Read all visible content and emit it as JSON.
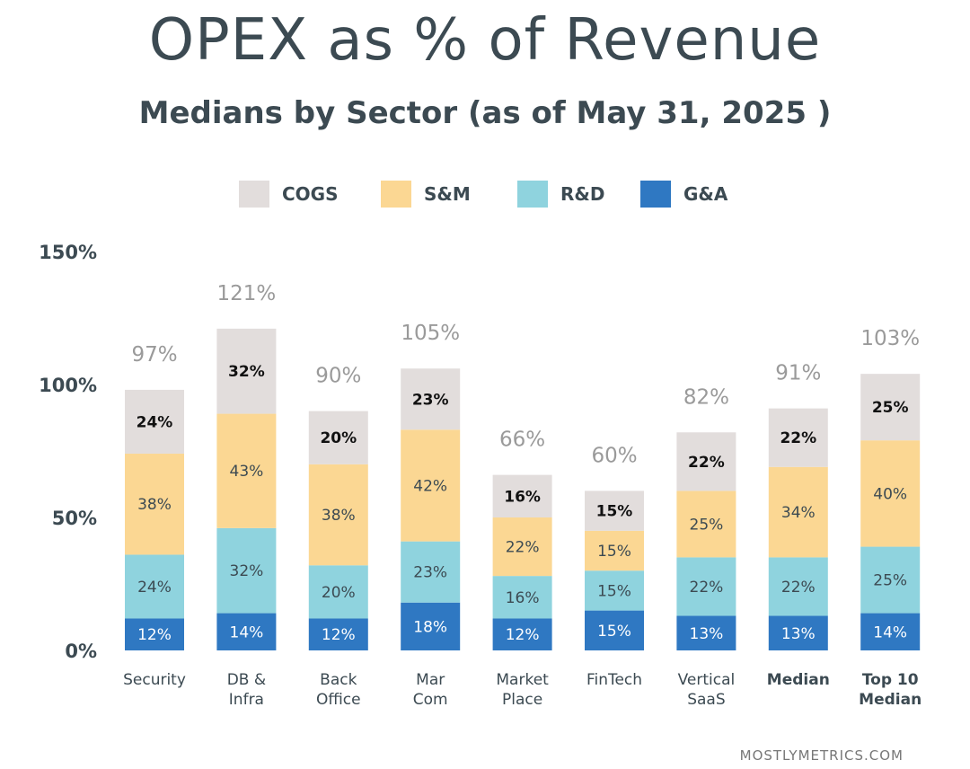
{
  "header": {
    "title": "OPEX as % of Revenue",
    "subtitle": "Medians by Sector (as of  May 31, 2025 )"
  },
  "footer": {
    "source": "MOSTLYMETRICS.COM"
  },
  "colors": {
    "COGS": "#e2dddc",
    "S&M": "#fbd793",
    "R&D": "#8fd3de",
    "G&A": "#2f78c2"
  },
  "chart_data": {
    "type": "bar",
    "stacked": true,
    "categories": [
      [
        "Security"
      ],
      [
        "DB &",
        "Infra"
      ],
      [
        "Back",
        "Office"
      ],
      [
        "Mar",
        "Com"
      ],
      [
        "Market",
        "Place"
      ],
      [
        "FinTech"
      ],
      [
        "Vertical",
        "SaaS"
      ],
      [
        "Median"
      ],
      [
        "Top 10",
        "Median"
      ]
    ],
    "bold_categories": [
      7,
      8
    ],
    "totals": [
      "97%",
      "121%",
      "90%",
      "105%",
      "66%",
      "60%",
      "82%",
      "91%",
      "103%"
    ],
    "series": [
      {
        "name": "G&A",
        "values": [
          12,
          14,
          12,
          18,
          12,
          15,
          13,
          13,
          14
        ]
      },
      {
        "name": "R&D",
        "values": [
          24,
          32,
          20,
          23,
          16,
          15,
          22,
          22,
          25
        ]
      },
      {
        "name": "S&M",
        "values": [
          38,
          43,
          38,
          42,
          22,
          15,
          25,
          34,
          40
        ]
      },
      {
        "name": "COGS",
        "values": [
          24,
          32,
          20,
          23,
          16,
          15,
          22,
          22,
          25
        ]
      }
    ],
    "legend": [
      "COGS",
      "S&M",
      "R&D",
      "G&A"
    ],
    "legend_position": "top",
    "yticks": [
      "0%",
      "50%",
      "100%",
      "150%"
    ],
    "ytick_values": [
      0,
      50,
      100,
      150
    ],
    "ylim": [
      0,
      150
    ],
    "grid": false
  }
}
